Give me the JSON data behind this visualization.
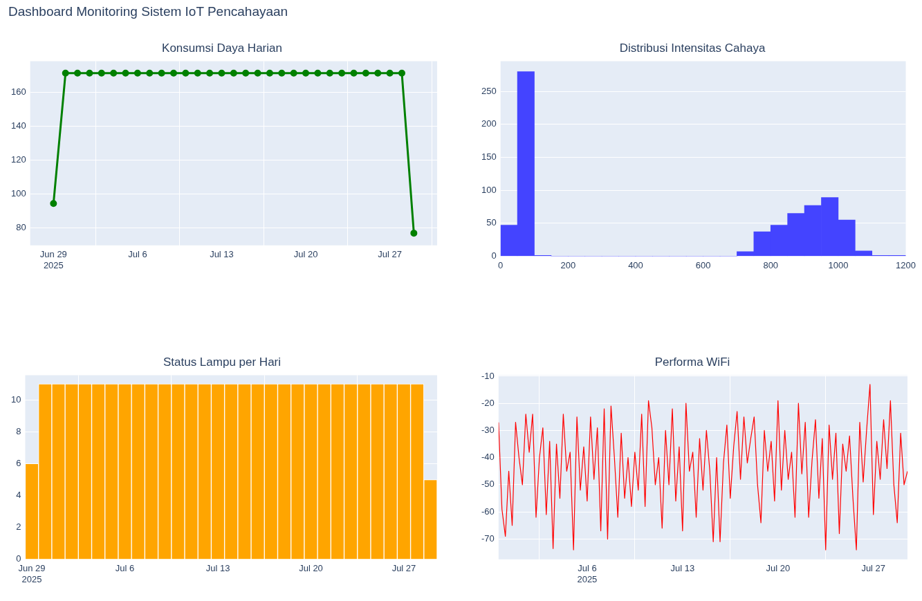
{
  "chart_data": [
    {
      "type": "other",
      "title": "Dashboard Monitoring Sistem IoT Pencahayaan"
    },
    {
      "type": "line",
      "title": "Konsumsi Daya Harian",
      "marker": "circle",
      "grid": true,
      "x": [
        "2025-06-29",
        "2025-06-30",
        "2025-07-01",
        "2025-07-02",
        "2025-07-03",
        "2025-07-04",
        "2025-07-05",
        "2025-07-06",
        "2025-07-07",
        "2025-07-08",
        "2025-07-09",
        "2025-07-10",
        "2025-07-11",
        "2025-07-12",
        "2025-07-13",
        "2025-07-14",
        "2025-07-15",
        "2025-07-16",
        "2025-07-17",
        "2025-07-18",
        "2025-07-19",
        "2025-07-20",
        "2025-07-21",
        "2025-07-22",
        "2025-07-23",
        "2025-07-24",
        "2025-07-25",
        "2025-07-26",
        "2025-07-27",
        "2025-07-28",
        "2025-07-29"
      ],
      "series": [
        {
          "color": "#008000",
          "values": [
            94.5,
            171.3,
            171.3,
            171.3,
            171.3,
            171.3,
            171.3,
            171.3,
            171.3,
            171.3,
            171.3,
            171.3,
            171.3,
            171.3,
            171.3,
            171.3,
            171.3,
            171.3,
            171.3,
            171.3,
            171.3,
            171.3,
            171.3,
            171.3,
            171.3,
            171.3,
            171.3,
            171.3,
            171.3,
            171.3,
            77
          ]
        }
      ],
      "xlim": [
        "2025-06-27T01:30",
        "2025-07-30T22:30"
      ],
      "xticks": [
        {
          "value": "2025-06-29",
          "label": "Jun 29\n2025"
        },
        {
          "value": "2025-07-06",
          "label": "Jul 6"
        },
        {
          "value": "2025-07-13",
          "label": "Jul 13"
        },
        {
          "value": "2025-07-20",
          "label": "Jul 20"
        },
        {
          "value": "2025-07-27",
          "label": "Jul 27"
        }
      ],
      "ylim": [
        69.8,
        178.4
      ],
      "yticks": [
        80,
        100,
        120,
        140,
        160
      ]
    },
    {
      "type": "histogram",
      "title": "Distribusi Intensitas Cahaya",
      "grid": "y",
      "color": "#4444ff",
      "bins": [
        0,
        50,
        100,
        150,
        200,
        250,
        300,
        350,
        400,
        450,
        500,
        550,
        600,
        650,
        700,
        750,
        800,
        850,
        900,
        950,
        1000,
        1050,
        1100,
        1150,
        1200
      ],
      "values": [
        47,
        280,
        1,
        0,
        0,
        0,
        0,
        0,
        0,
        0,
        0,
        0,
        0,
        0,
        7,
        37,
        47,
        65,
        77,
        89,
        55,
        8,
        1,
        1
      ],
      "xlim": [
        0,
        1200
      ],
      "xticks": [
        0,
        200,
        400,
        600,
        800,
        1000,
        1200
      ],
      "ylim": [
        0,
        296
      ],
      "yticks": [
        0,
        50,
        100,
        150,
        200,
        250
      ]
    },
    {
      "type": "bar",
      "title": "Status Lampu per Hari",
      "grid": true,
      "x": [
        "2025-06-29",
        "2025-06-30",
        "2025-07-01",
        "2025-07-02",
        "2025-07-03",
        "2025-07-04",
        "2025-07-05",
        "2025-07-06",
        "2025-07-07",
        "2025-07-08",
        "2025-07-09",
        "2025-07-10",
        "2025-07-11",
        "2025-07-12",
        "2025-07-13",
        "2025-07-14",
        "2025-07-15",
        "2025-07-16",
        "2025-07-17",
        "2025-07-18",
        "2025-07-19",
        "2025-07-20",
        "2025-07-21",
        "2025-07-22",
        "2025-07-23",
        "2025-07-24",
        "2025-07-25",
        "2025-07-26",
        "2025-07-27",
        "2025-07-28",
        "2025-07-29"
      ],
      "series": [
        {
          "color": "#ffa500",
          "values": [
            6,
            11,
            11,
            11,
            11,
            11,
            11,
            11,
            11,
            11,
            11,
            11,
            11,
            11,
            11,
            11,
            11,
            11,
            11,
            11,
            11,
            11,
            11,
            11,
            11,
            11,
            11,
            11,
            11,
            11,
            5
          ]
        }
      ],
      "xlim": [
        "2025-06-28T12:00",
        "2025-07-29T12:00"
      ],
      "xticks": [
        {
          "value": "2025-06-29",
          "label": "Jun 29\n2025"
        },
        {
          "value": "2025-07-06",
          "label": "Jul 6"
        },
        {
          "value": "2025-07-13",
          "label": "Jul 13"
        },
        {
          "value": "2025-07-20",
          "label": "Jul 20"
        },
        {
          "value": "2025-07-27",
          "label": "Jul 27"
        }
      ],
      "ylim": [
        0,
        11.55
      ],
      "yticks": [
        0,
        2,
        4,
        6,
        8,
        10
      ]
    },
    {
      "type": "line",
      "title": "Performa WiFi",
      "grid": true,
      "x": [
        "2025-06-29T12:00",
        "2025-06-29T18:00",
        "2025-06-30T00:00",
        "2025-06-30T06:00",
        "2025-06-30T12:00",
        "2025-06-30T18:00",
        "2025-07-01T00:00",
        "2025-07-01T06:00",
        "2025-07-01T12:00",
        "2025-07-01T18:00",
        "2025-07-02T00:00",
        "2025-07-02T06:00",
        "2025-07-02T12:00",
        "2025-07-02T18:00",
        "2025-07-03T00:00",
        "2025-07-03T06:00",
        "2025-07-03T12:00",
        "2025-07-03T18:00",
        "2025-07-04T00:00",
        "2025-07-04T06:00",
        "2025-07-04T12:00",
        "2025-07-04T18:00",
        "2025-07-05T00:00",
        "2025-07-05T06:00",
        "2025-07-05T12:00",
        "2025-07-05T18:00",
        "2025-07-06T00:00",
        "2025-07-06T06:00",
        "2025-07-06T12:00",
        "2025-07-06T18:00",
        "2025-07-07T00:00",
        "2025-07-07T06:00",
        "2025-07-07T12:00",
        "2025-07-07T18:00",
        "2025-07-08T00:00",
        "2025-07-08T06:00",
        "2025-07-08T12:00",
        "2025-07-08T18:00",
        "2025-07-09T00:00",
        "2025-07-09T06:00",
        "2025-07-09T12:00",
        "2025-07-09T18:00",
        "2025-07-10T00:00",
        "2025-07-10T06:00",
        "2025-07-10T12:00",
        "2025-07-10T18:00",
        "2025-07-11T00:00",
        "2025-07-11T06:00",
        "2025-07-11T12:00",
        "2025-07-11T18:00",
        "2025-07-12T00:00",
        "2025-07-12T06:00",
        "2025-07-12T12:00",
        "2025-07-12T18:00",
        "2025-07-13T00:00",
        "2025-07-13T06:00",
        "2025-07-13T12:00",
        "2025-07-13T18:00",
        "2025-07-14T00:00",
        "2025-07-14T06:00",
        "2025-07-14T12:00",
        "2025-07-14T18:00",
        "2025-07-15T00:00",
        "2025-07-15T06:00",
        "2025-07-15T12:00",
        "2025-07-15T18:00",
        "2025-07-16T00:00",
        "2025-07-16T06:00",
        "2025-07-16T12:00",
        "2025-07-16T18:00",
        "2025-07-17T00:00",
        "2025-07-17T06:00",
        "2025-07-17T12:00",
        "2025-07-17T18:00",
        "2025-07-18T00:00",
        "2025-07-18T06:00",
        "2025-07-18T12:00",
        "2025-07-18T18:00",
        "2025-07-19T00:00",
        "2025-07-19T06:00",
        "2025-07-19T12:00",
        "2025-07-19T18:00",
        "2025-07-20T00:00",
        "2025-07-20T06:00",
        "2025-07-20T12:00",
        "2025-07-20T18:00",
        "2025-07-21T00:00",
        "2025-07-21T06:00",
        "2025-07-21T12:00",
        "2025-07-21T18:00",
        "2025-07-22T00:00",
        "2025-07-22T06:00",
        "2025-07-22T12:00",
        "2025-07-22T18:00",
        "2025-07-23T00:00",
        "2025-07-23T06:00",
        "2025-07-23T12:00",
        "2025-07-23T18:00",
        "2025-07-24T00:00",
        "2025-07-24T06:00",
        "2025-07-24T12:00",
        "2025-07-24T18:00",
        "2025-07-25T00:00",
        "2025-07-25T06:00",
        "2025-07-25T12:00",
        "2025-07-25T18:00",
        "2025-07-26T00:00",
        "2025-07-26T06:00",
        "2025-07-26T12:00",
        "2025-07-26T18:00",
        "2025-07-27T00:00",
        "2025-07-27T06:00",
        "2025-07-27T12:00",
        "2025-07-27T18:00",
        "2025-07-28T00:00",
        "2025-07-28T06:00",
        "2025-07-28T12:00",
        "2025-07-28T18:00",
        "2025-07-29T00:00",
        "2025-07-29T06:00",
        "2025-07-29T12:00"
      ],
      "series": [
        {
          "color": "#ff0000",
          "values": [
            -27,
            -59,
            -69,
            -45,
            -65,
            -27,
            -40,
            -50,
            -24,
            -38,
            -24,
            -62,
            -40,
            -29,
            -61,
            -34,
            -73.5,
            -35,
            -55,
            -24,
            -45,
            -38,
            -74,
            -25,
            -52,
            -36,
            -56,
            -25,
            -48,
            -29,
            -67,
            -22,
            -70,
            -21,
            -40,
            -62,
            -31,
            -55,
            -40,
            -58,
            -38,
            -52,
            -24,
            -58,
            -19,
            -29,
            -50,
            -40,
            -66,
            -30,
            -50,
            -22,
            -56,
            -36,
            -67,
            -20,
            -45,
            -38,
            -62,
            -33,
            -52,
            -30,
            -45,
            -71,
            -40,
            -71,
            -42,
            -28,
            -55,
            -36,
            -23,
            -48,
            -25,
            -42,
            -33,
            -25,
            -50,
            -64,
            -30,
            -45,
            -34,
            -56,
            -19,
            -52,
            -30,
            -48,
            -38,
            -62,
            -20,
            -46,
            -27,
            -62,
            -41,
            -26,
            -55,
            -33,
            -74,
            -28,
            -48,
            -31,
            -68,
            -35,
            -45,
            -32,
            -55,
            -74,
            -27,
            -49,
            -30,
            -13,
            -61,
            -34,
            -48,
            -26,
            -44,
            -19,
            -50,
            -64,
            -31,
            -50,
            -45
          ]
        }
      ],
      "xlim": [
        "2025-06-29T12:00",
        "2025-07-29T12:00"
      ],
      "xticks": [
        {
          "value": "2025-07-06",
          "label": "Jul 6\n2025"
        },
        {
          "value": "2025-07-13",
          "label": "Jul 13"
        },
        {
          "value": "2025-07-20",
          "label": "Jul 20"
        },
        {
          "value": "2025-07-27",
          "label": "Jul 27"
        }
      ],
      "ylim": [
        -77.5,
        -9.6
      ],
      "yticks": [
        -70,
        -60,
        -50,
        -40,
        -30,
        -20,
        -10
      ]
    }
  ]
}
